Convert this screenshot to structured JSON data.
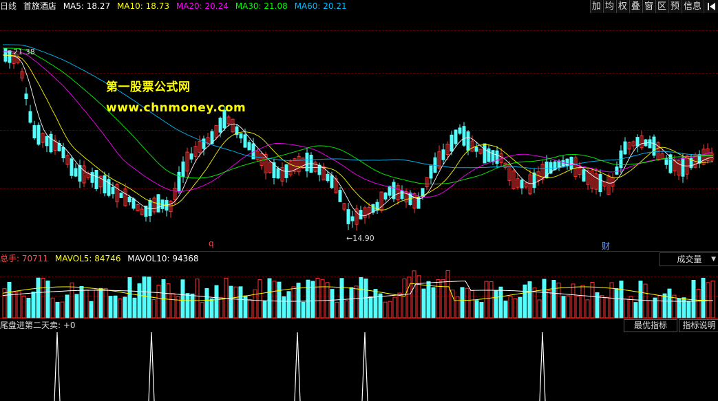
{
  "header": {
    "period": "日线",
    "stock_name": "首旅酒店",
    "ma": [
      {
        "label": "MA5: 18.27",
        "color": "#ffffff"
      },
      {
        "label": "MA10: 18.73",
        "color": "#ffff00"
      },
      {
        "label": "MA20: 20.24",
        "color": "#ff00ff"
      },
      {
        "label": "MA30: 21.08",
        "color": "#00ff00"
      },
      {
        "label": "MA60: 20.21",
        "color": "#00bfff"
      }
    ],
    "toolbar": [
      "加",
      "均",
      "权",
      "叠",
      "窗",
      "区",
      "预",
      "信息"
    ],
    "icon_close": "right-arrow-icon"
  },
  "price_chart": {
    "high_label": "21.38",
    "low_label": "14.90",
    "marker_q": "q",
    "marker_cai": "财"
  },
  "watermark": {
    "line1": "第一股票公式网",
    "line2": "www.chnmoney.com"
  },
  "volume_panel": {
    "total_label": "总手: 70711",
    "mavol5": "MAVOL5: 84746",
    "mavol10": "MAVOL10: 94368",
    "indicator_select": "成交量"
  },
  "indicator_panel": {
    "title": "尾盘进第二天卖: +0",
    "best_button": "最优指标",
    "help_button": "指标说明"
  },
  "colors": {
    "up": "#ff3232",
    "down": "#54fcfc",
    "grid": "#5a0000",
    "border": "#a00000"
  }
}
